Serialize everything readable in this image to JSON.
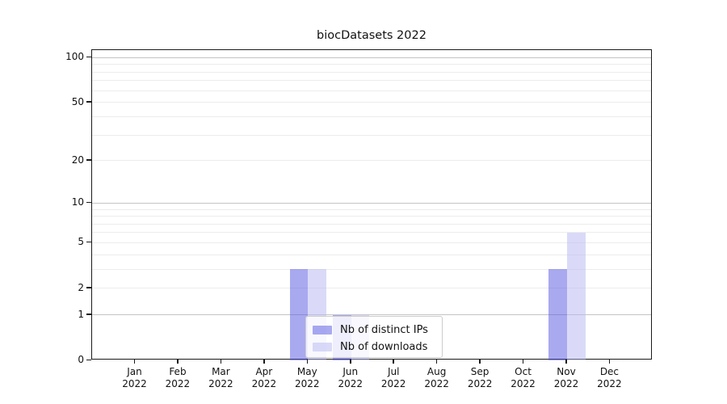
{
  "chart_data": {
    "type": "bar",
    "title": "biocDatasets 2022",
    "categories": [
      "Jan",
      "Feb",
      "Mar",
      "Apr",
      "May",
      "Jun",
      "Jul",
      "Aug",
      "Sep",
      "Oct",
      "Nov",
      "Dec"
    ],
    "category_year": "2022",
    "series": [
      {
        "name": "Nb of distinct IPs",
        "color": "#5353e1",
        "color_on_white": "#a9a9f0",
        "values": [
          0,
          0,
          0,
          0,
          3,
          1,
          0,
          0,
          0,
          0,
          3,
          0
        ]
      },
      {
        "name": "Nb of downloads",
        "color": "#b5b5f1",
        "color_on_white": "#dadaf8",
        "values": [
          0,
          0,
          0,
          0,
          3,
          1,
          0,
          0,
          0,
          0,
          6,
          0
        ]
      }
    ],
    "xlabel": "",
    "ylabel": "",
    "yscale": "log1p",
    "ylim": [
      0,
      112
    ],
    "yticks": [
      100,
      50,
      20,
      10,
      5,
      2,
      1,
      0
    ],
    "grid": {
      "on": true,
      "major_values": [
        1,
        10,
        100
      ],
      "minor_values": [
        2,
        3,
        4,
        5,
        6,
        7,
        8,
        9,
        20,
        30,
        40,
        50,
        60,
        70,
        80,
        90
      ],
      "major_color": "#c4c4c4",
      "minor_color": "#ececec"
    },
    "legend": {
      "position": "lower center",
      "frame": true
    }
  }
}
